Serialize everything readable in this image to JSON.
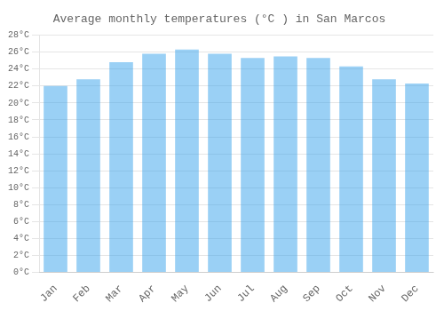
{
  "chart_data": {
    "type": "bar",
    "title": "Average monthly temperatures (°C ) in San Marcos",
    "categories": [
      "Jan",
      "Feb",
      "Mar",
      "Apr",
      "May",
      "Jun",
      "Jul",
      "Aug",
      "Sep",
      "Oct",
      "Nov",
      "Dec"
    ],
    "values": [
      22.0,
      22.8,
      24.8,
      25.8,
      26.3,
      25.8,
      25.3,
      25.5,
      25.3,
      24.3,
      22.8,
      22.3
    ],
    "ylim": [
      0,
      28
    ],
    "yticks": [
      {
        "value": 0,
        "label": "0°C"
      },
      {
        "value": 2,
        "label": "2°C"
      },
      {
        "value": 4,
        "label": "4°C"
      },
      {
        "value": 6,
        "label": "6°C"
      },
      {
        "value": 8,
        "label": "8°C"
      },
      {
        "value": 10,
        "label": "10°C"
      },
      {
        "value": 12,
        "label": "12°C"
      },
      {
        "value": 14,
        "label": "14°C"
      },
      {
        "value": 16,
        "label": "16°C"
      },
      {
        "value": 18,
        "label": "18°C"
      },
      {
        "value": 20,
        "label": "20°C"
      },
      {
        "value": 22,
        "label": "22°C"
      },
      {
        "value": 24,
        "label": "24°C"
      },
      {
        "value": 26,
        "label": "26°C"
      },
      {
        "value": 28,
        "label": "28°C"
      }
    ],
    "grid": true
  }
}
